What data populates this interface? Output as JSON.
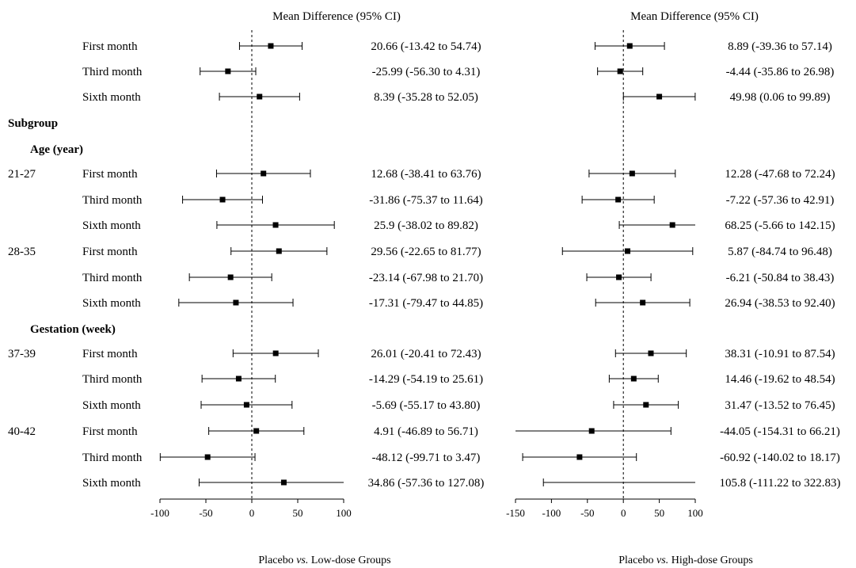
{
  "headings": {
    "subgroup": "Subgroup",
    "age": "Age (year)",
    "gestation": "Gestation (week)"
  },
  "chart_data": [
    {
      "type": "forest",
      "title": "Mean Difference (95% CI)",
      "xlabel_prefix": "Placebo ",
      "xlabel_vs": "vs.",
      "xlabel_suffix": " Low-dose Groups",
      "xlim": [
        -100,
        100
      ],
      "ticks": [
        "-100",
        "-50",
        "0",
        "50",
        "100"
      ],
      "tick_values": [
        -100,
        -50,
        0,
        50,
        100
      ],
      "rows": [
        {
          "group": "",
          "label": "First month",
          "mean": 20.66,
          "lo": -13.42,
          "hi": 54.74,
          "text": "20.66 (-13.42 to 54.74)"
        },
        {
          "group": "",
          "label": "Third month",
          "mean": -25.99,
          "lo": -56.3,
          "hi": 4.31,
          "text": "-25.99 (-56.30 to 4.31)"
        },
        {
          "group": "",
          "label": "Sixth month",
          "mean": 8.39,
          "lo": -35.28,
          "hi": 52.05,
          "text": "8.39 (-35.28 to 52.05)"
        },
        {
          "group": "21-27",
          "label": "First month",
          "mean": 12.68,
          "lo": -38.41,
          "hi": 63.76,
          "text": "12.68 (-38.41 to 63.76)"
        },
        {
          "group": "",
          "label": "Third month",
          "mean": -31.86,
          "lo": -75.37,
          "hi": 11.64,
          "text": "-31.86 (-75.37 to 11.64)"
        },
        {
          "group": "",
          "label": "Sixth month",
          "mean": 25.9,
          "lo": -38.02,
          "hi": 89.82,
          "text": "25.9 (-38.02 to 89.82)"
        },
        {
          "group": "28-35",
          "label": "First month",
          "mean": 29.56,
          "lo": -22.65,
          "hi": 81.77,
          "text": "29.56 (-22.65 to 81.77)"
        },
        {
          "group": "",
          "label": "Third month",
          "mean": -23.14,
          "lo": -67.98,
          "hi": 21.7,
          "text": "-23.14 (-67.98 to 21.70)"
        },
        {
          "group": "",
          "label": "Sixth month",
          "mean": -17.31,
          "lo": -79.47,
          "hi": 44.85,
          "text": "-17.31 (-79.47 to 44.85)"
        },
        {
          "group": "37-39",
          "label": "First month",
          "mean": 26.01,
          "lo": -20.41,
          "hi": 72.43,
          "text": "26.01 (-20.41 to 72.43)"
        },
        {
          "group": "",
          "label": "Third month",
          "mean": -14.29,
          "lo": -54.19,
          "hi": 25.61,
          "text": "-14.29 (-54.19 to 25.61)"
        },
        {
          "group": "",
          "label": "Sixth month",
          "mean": -5.69,
          "lo": -55.17,
          "hi": 43.8,
          "text": "-5.69 (-55.17 to 43.80)"
        },
        {
          "group": "40-42",
          "label": "First month",
          "mean": 4.91,
          "lo": -46.89,
          "hi": 56.71,
          "text": "4.91 (-46.89 to 56.71)"
        },
        {
          "group": "",
          "label": "Third month",
          "mean": -48.12,
          "lo": -99.71,
          "hi": 3.47,
          "text": "-48.12 (-99.71 to 3.47)"
        },
        {
          "group": "",
          "label": "Sixth month",
          "mean": 34.86,
          "lo": -57.36,
          "hi": 127.08,
          "text": "34.86 (-57.36 to 127.08)"
        }
      ]
    },
    {
      "type": "forest",
      "title": "Mean Difference (95% CI)",
      "xlabel_prefix": "Placebo ",
      "xlabel_vs": "vs.",
      "xlabel_suffix": " High-dose Groups",
      "xlim": [
        -150,
        100
      ],
      "ticks": [
        "-150",
        "-100",
        "-50",
        "0",
        "50",
        "100"
      ],
      "tick_values": [
        -150,
        -100,
        -50,
        0,
        50,
        100
      ],
      "rows": [
        {
          "mean": 8.89,
          "lo": -39.36,
          "hi": 57.14,
          "text": "8.89 (-39.36 to 57.14)"
        },
        {
          "mean": -4.44,
          "lo": -35.86,
          "hi": 26.98,
          "text": "-4.44 (-35.86 to 26.98)"
        },
        {
          "mean": 49.98,
          "lo": 0.06,
          "hi": 99.89,
          "text": "49.98 (0.06 to 99.89)"
        },
        {
          "mean": 12.28,
          "lo": -47.68,
          "hi": 72.24,
          "text": "12.28 (-47.68 to 72.24)"
        },
        {
          "mean": -7.22,
          "lo": -57.36,
          "hi": 42.91,
          "text": "-7.22 (-57.36 to 42.91)"
        },
        {
          "mean": 68.25,
          "lo": -5.66,
          "hi": 142.15,
          "text": "68.25 (-5.66 to 142.15)"
        },
        {
          "mean": 5.87,
          "lo": -84.74,
          "hi": 96.48,
          "text": "5.87 (-84.74 to 96.48)"
        },
        {
          "mean": -6.21,
          "lo": -50.84,
          "hi": 38.43,
          "text": "-6.21 (-50.84 to 38.43)"
        },
        {
          "mean": 26.94,
          "lo": -38.53,
          "hi": 92.4,
          "text": "26.94 (-38.53 to 92.40)"
        },
        {
          "mean": 38.31,
          "lo": -10.91,
          "hi": 87.54,
          "text": "38.31 (-10.91 to 87.54)"
        },
        {
          "mean": 14.46,
          "lo": -19.62,
          "hi": 48.54,
          "text": "14.46 (-19.62 to 48.54)"
        },
        {
          "mean": 31.47,
          "lo": -13.52,
          "hi": 76.45,
          "text": "31.47 (-13.52 to 76.45)"
        },
        {
          "mean": -44.05,
          "lo": -154.31,
          "hi": 66.21,
          "text": "-44.05 (-154.31 to 66.21)"
        },
        {
          "mean": -60.92,
          "lo": -140.02,
          "hi": 18.17,
          "text": "-60.92 (-140.02 to 18.17)"
        },
        {
          "mean": 105.8,
          "lo": -111.22,
          "hi": 322.83,
          "text": "105.8 (-111.22 to 322.83)"
        }
      ]
    }
  ]
}
